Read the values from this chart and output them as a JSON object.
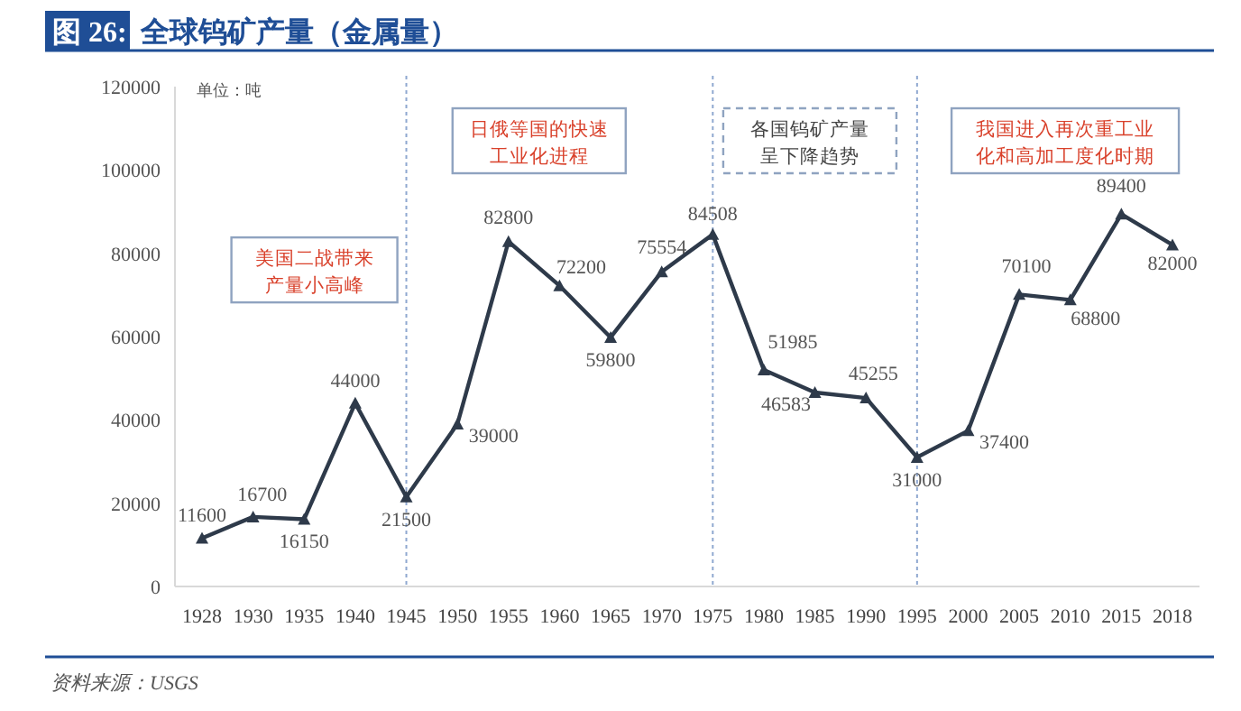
{
  "chart_data": {
    "type": "line",
    "title": "图 26: 全球钨矿产量（金属量）",
    "ylabel": "单位：吨",
    "categories": [
      "1928",
      "1930",
      "1935",
      "1940",
      "1945",
      "1950",
      "1955",
      "1960",
      "1965",
      "1970",
      "1975",
      "1980",
      "1985",
      "1990",
      "1995",
      "2000",
      "2005",
      "2010",
      "2015",
      "2018"
    ],
    "series": [
      {
        "color": "#2e3a4a",
        "values": [
          11600,
          16700,
          16150,
          44000,
          21500,
          39000,
          82800,
          72200,
          59800,
          75554,
          84508,
          51985,
          46583,
          45255,
          31000,
          37400,
          70100,
          68800,
          89400,
          82000
        ]
      }
    ],
    "ylim": [
      0,
      120000
    ],
    "yticks": [
      0,
      20000,
      40000,
      60000,
      80000,
      100000,
      120000
    ],
    "data_labels": true,
    "marker": "triangle",
    "line_style": "solid",
    "ref_lines": [
      {
        "axis": "x",
        "value": "1945",
        "color": "#8fa8d0",
        "line_style": "dotted"
      },
      {
        "axis": "x",
        "value": "1975",
        "color": "#8fa8d0",
        "line_style": "dotted"
      },
      {
        "axis": "x",
        "value": "1995",
        "color": "#8fa8d0",
        "line_style": "dotted"
      }
    ],
    "annotations": [
      "美国二战带来产量小高峰",
      "日俄等国的快速工业化进程",
      "各国钨矿产量呈下降趋势",
      "我国进入再次重工业化和高加工度化时期",
      "资料来源：USGS"
    ]
  }
}
